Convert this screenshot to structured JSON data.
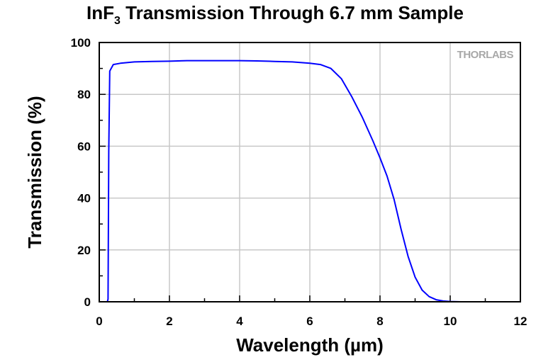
{
  "chart_data": {
    "type": "line",
    "title": {
      "prefix": "InF",
      "subscript": "3",
      "suffix": " Transmission Through 6.7 mm Sample"
    },
    "xlabel": "Wavelength (µm)",
    "ylabel": "Transmission (%)",
    "xlim": [
      0,
      12
    ],
    "ylim": [
      0,
      100
    ],
    "xticks": [
      0,
      2,
      4,
      6,
      8,
      10,
      12
    ],
    "yticks": [
      0,
      20,
      40,
      60,
      80,
      100
    ],
    "grid": true,
    "logo": "THORLABS",
    "series": [
      {
        "color": "#0000ff",
        "x": [
          0.2,
          0.23,
          0.25,
          0.27,
          0.3,
          0.4,
          0.6,
          1.0,
          1.5,
          2.0,
          2.5,
          3.0,
          3.5,
          4.0,
          4.5,
          5.0,
          5.5,
          6.0,
          6.3,
          6.6,
          6.9,
          7.2,
          7.5,
          7.8,
          8.0,
          8.2,
          8.4,
          8.6,
          8.8,
          9.0,
          9.2,
          9.4,
          9.6,
          9.8,
          10.0,
          10.3,
          10.6,
          11.0
        ],
        "y": [
          0,
          0,
          1,
          58,
          89,
          91.5,
          92,
          92.5,
          92.7,
          92.8,
          93,
          93,
          93,
          93,
          92.9,
          92.7,
          92.5,
          92,
          91.5,
          90,
          86,
          79,
          71,
          62,
          55.5,
          48.5,
          39.5,
          28,
          17.5,
          9.5,
          4.5,
          2,
          0.8,
          0.3,
          0.1,
          0,
          0,
          0
        ]
      }
    ]
  }
}
